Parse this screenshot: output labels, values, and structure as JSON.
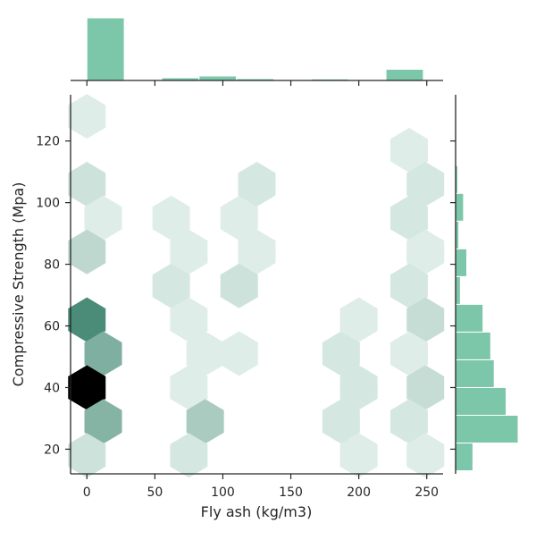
{
  "chart_data": {
    "type": "hexbin-joint",
    "xlabel": "Fly ash (kg/m3)",
    "ylabel": "Compressive Strength (Mpa)",
    "xlim": [
      -12,
      262
    ],
    "ylim": [
      12,
      135
    ],
    "xticks": [
      0,
      50,
      100,
      150,
      200,
      250
    ],
    "yticks": [
      20,
      40,
      60,
      80,
      100,
      120
    ],
    "grid": false,
    "color_dark": "#2f7b63",
    "color_light": "#eaf5f1",
    "color_max": "#000000",
    "hist_color": "#7cc7aa",
    "hex_cells": [
      {
        "x": 0,
        "y": 128,
        "c": 1
      },
      {
        "x": 0,
        "y": 106,
        "c": 3
      },
      {
        "x": 12,
        "y": 95,
        "c": 1
      },
      {
        "x": 0,
        "y": 84,
        "c": 5
      },
      {
        "x": 0,
        "y": 62,
        "c": 25
      },
      {
        "x": 12,
        "y": 51,
        "c": 15
      },
      {
        "x": 0,
        "y": 40,
        "c": 40
      },
      {
        "x": 12,
        "y": 29,
        "c": 14
      },
      {
        "x": 0,
        "y": 18,
        "c": 3
      },
      {
        "x": 62,
        "y": 95,
        "c": 1
      },
      {
        "x": 75,
        "y": 84,
        "c": 1
      },
      {
        "x": 62,
        "y": 73,
        "c": 2
      },
      {
        "x": 75,
        "y": 62,
        "c": 1
      },
      {
        "x": 87,
        "y": 51,
        "c": 1
      },
      {
        "x": 75,
        "y": 40,
        "c": 1
      },
      {
        "x": 87,
        "y": 29,
        "c": 8
      },
      {
        "x": 75,
        "y": 18,
        "c": 2
      },
      {
        "x": 112,
        "y": 95,
        "c": 1
      },
      {
        "x": 125,
        "y": 106,
        "c": 2
      },
      {
        "x": 125,
        "y": 84,
        "c": 1
      },
      {
        "x": 112,
        "y": 73,
        "c": 3
      },
      {
        "x": 112,
        "y": 51,
        "c": 1
      },
      {
        "x": 187,
        "y": 51,
        "c": 2
      },
      {
        "x": 200,
        "y": 62,
        "c": 1
      },
      {
        "x": 200,
        "y": 40,
        "c": 2
      },
      {
        "x": 187,
        "y": 29,
        "c": 2
      },
      {
        "x": 200,
        "y": 18,
        "c": 1
      },
      {
        "x": 237,
        "y": 117,
        "c": 1
      },
      {
        "x": 249,
        "y": 106,
        "c": 2
      },
      {
        "x": 237,
        "y": 95,
        "c": 2
      },
      {
        "x": 249,
        "y": 84,
        "c": 1
      },
      {
        "x": 237,
        "y": 73,
        "c": 2
      },
      {
        "x": 249,
        "y": 62,
        "c": 4
      },
      {
        "x": 237,
        "y": 51,
        "c": 1
      },
      {
        "x": 249,
        "y": 40,
        "c": 4
      },
      {
        "x": 237,
        "y": 29,
        "c": 2
      },
      {
        "x": 249,
        "y": 18,
        "c": 1
      }
    ],
    "x_hist": {
      "edges": [
        0,
        27.5,
        55,
        82.5,
        110,
        137.5,
        165,
        192.5,
        220,
        247.5
      ],
      "counts": [
        420,
        0,
        18,
        30,
        12,
        0,
        10,
        0,
        75
      ]
    },
    "y_hist": {
      "edges": [
        13,
        22,
        31,
        40,
        49,
        58,
        67,
        76,
        85,
        94,
        103,
        112,
        121,
        130
      ],
      "counts": [
        65,
        235,
        190,
        145,
        132,
        103,
        18,
        42,
        12,
        30,
        8,
        3,
        0
      ]
    }
  }
}
